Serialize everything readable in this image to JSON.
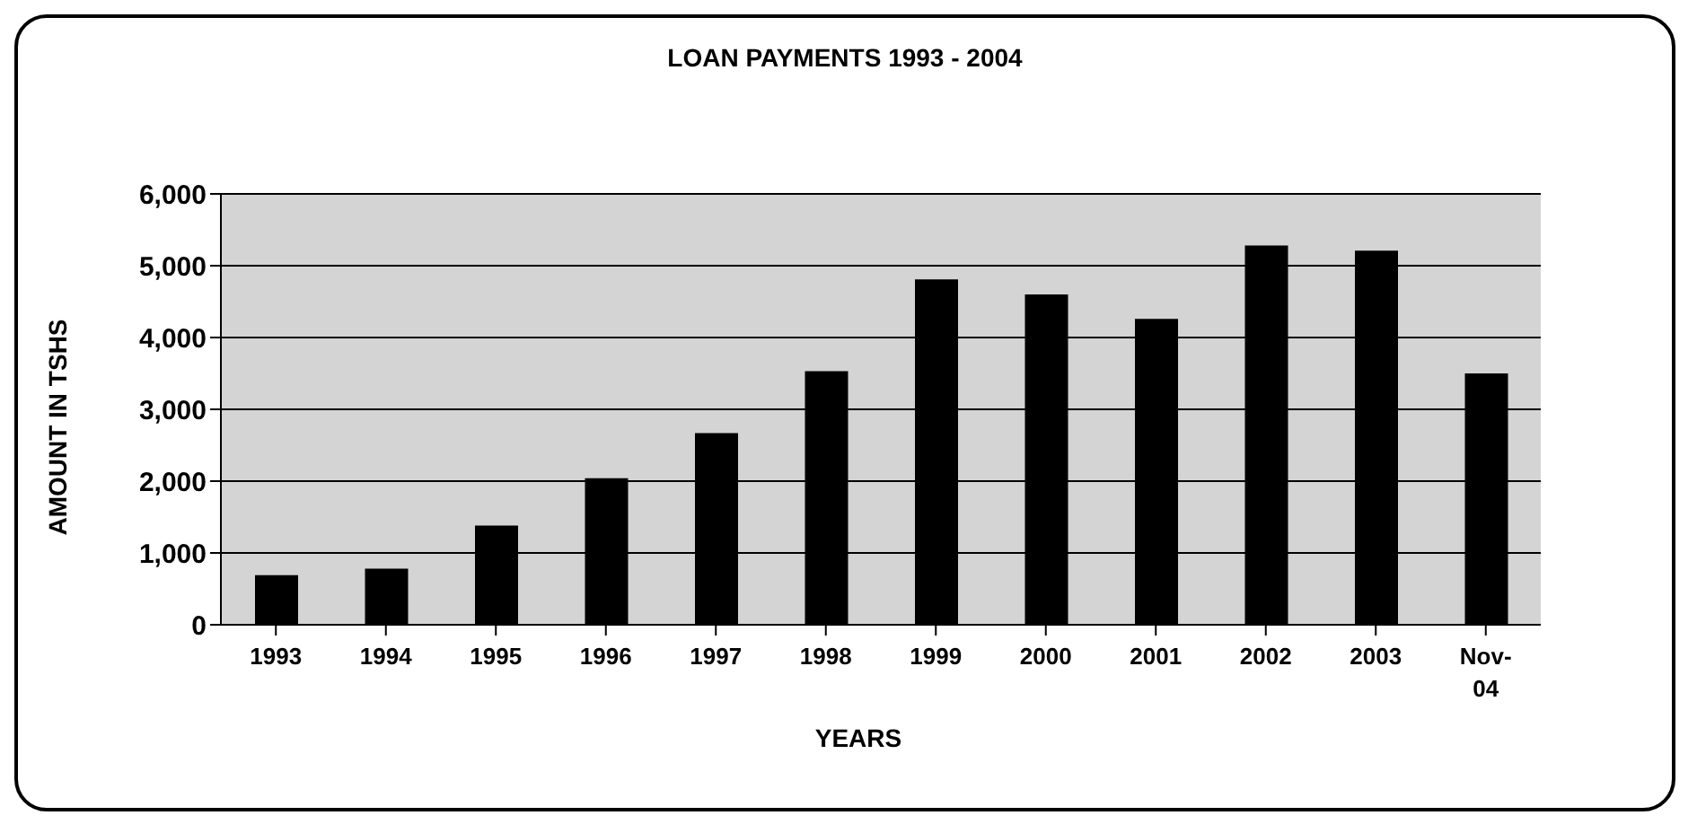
{
  "chart_data": {
    "type": "bar",
    "title": "LOAN PAYMENTS 1993 - 2004",
    "xlabel": "YEARS",
    "ylabel": "AMOUNT IN TSHS",
    "categories": [
      "1993",
      "1994",
      "1995",
      "1996",
      "1997",
      "1998",
      "1999",
      "2000",
      "2001",
      "2002",
      "2003",
      "Nov-04"
    ],
    "values": [
      690,
      780,
      1380,
      2040,
      2670,
      3530,
      4810,
      4600,
      4260,
      5280,
      5210,
      3500
    ],
    "color": "#000000",
    "ylim": [
      0,
      6000
    ],
    "yticks": [
      {
        "value": 0,
        "label": "0"
      },
      {
        "value": 1000,
        "label": "1,000"
      },
      {
        "value": 2000,
        "label": "2,000"
      },
      {
        "value": 3000,
        "label": "3,000"
      },
      {
        "value": 4000,
        "label": "4,000"
      },
      {
        "value": 5000,
        "label": "5,000"
      },
      {
        "value": 6000,
        "label": "6,000"
      }
    ],
    "grid": "y"
  }
}
